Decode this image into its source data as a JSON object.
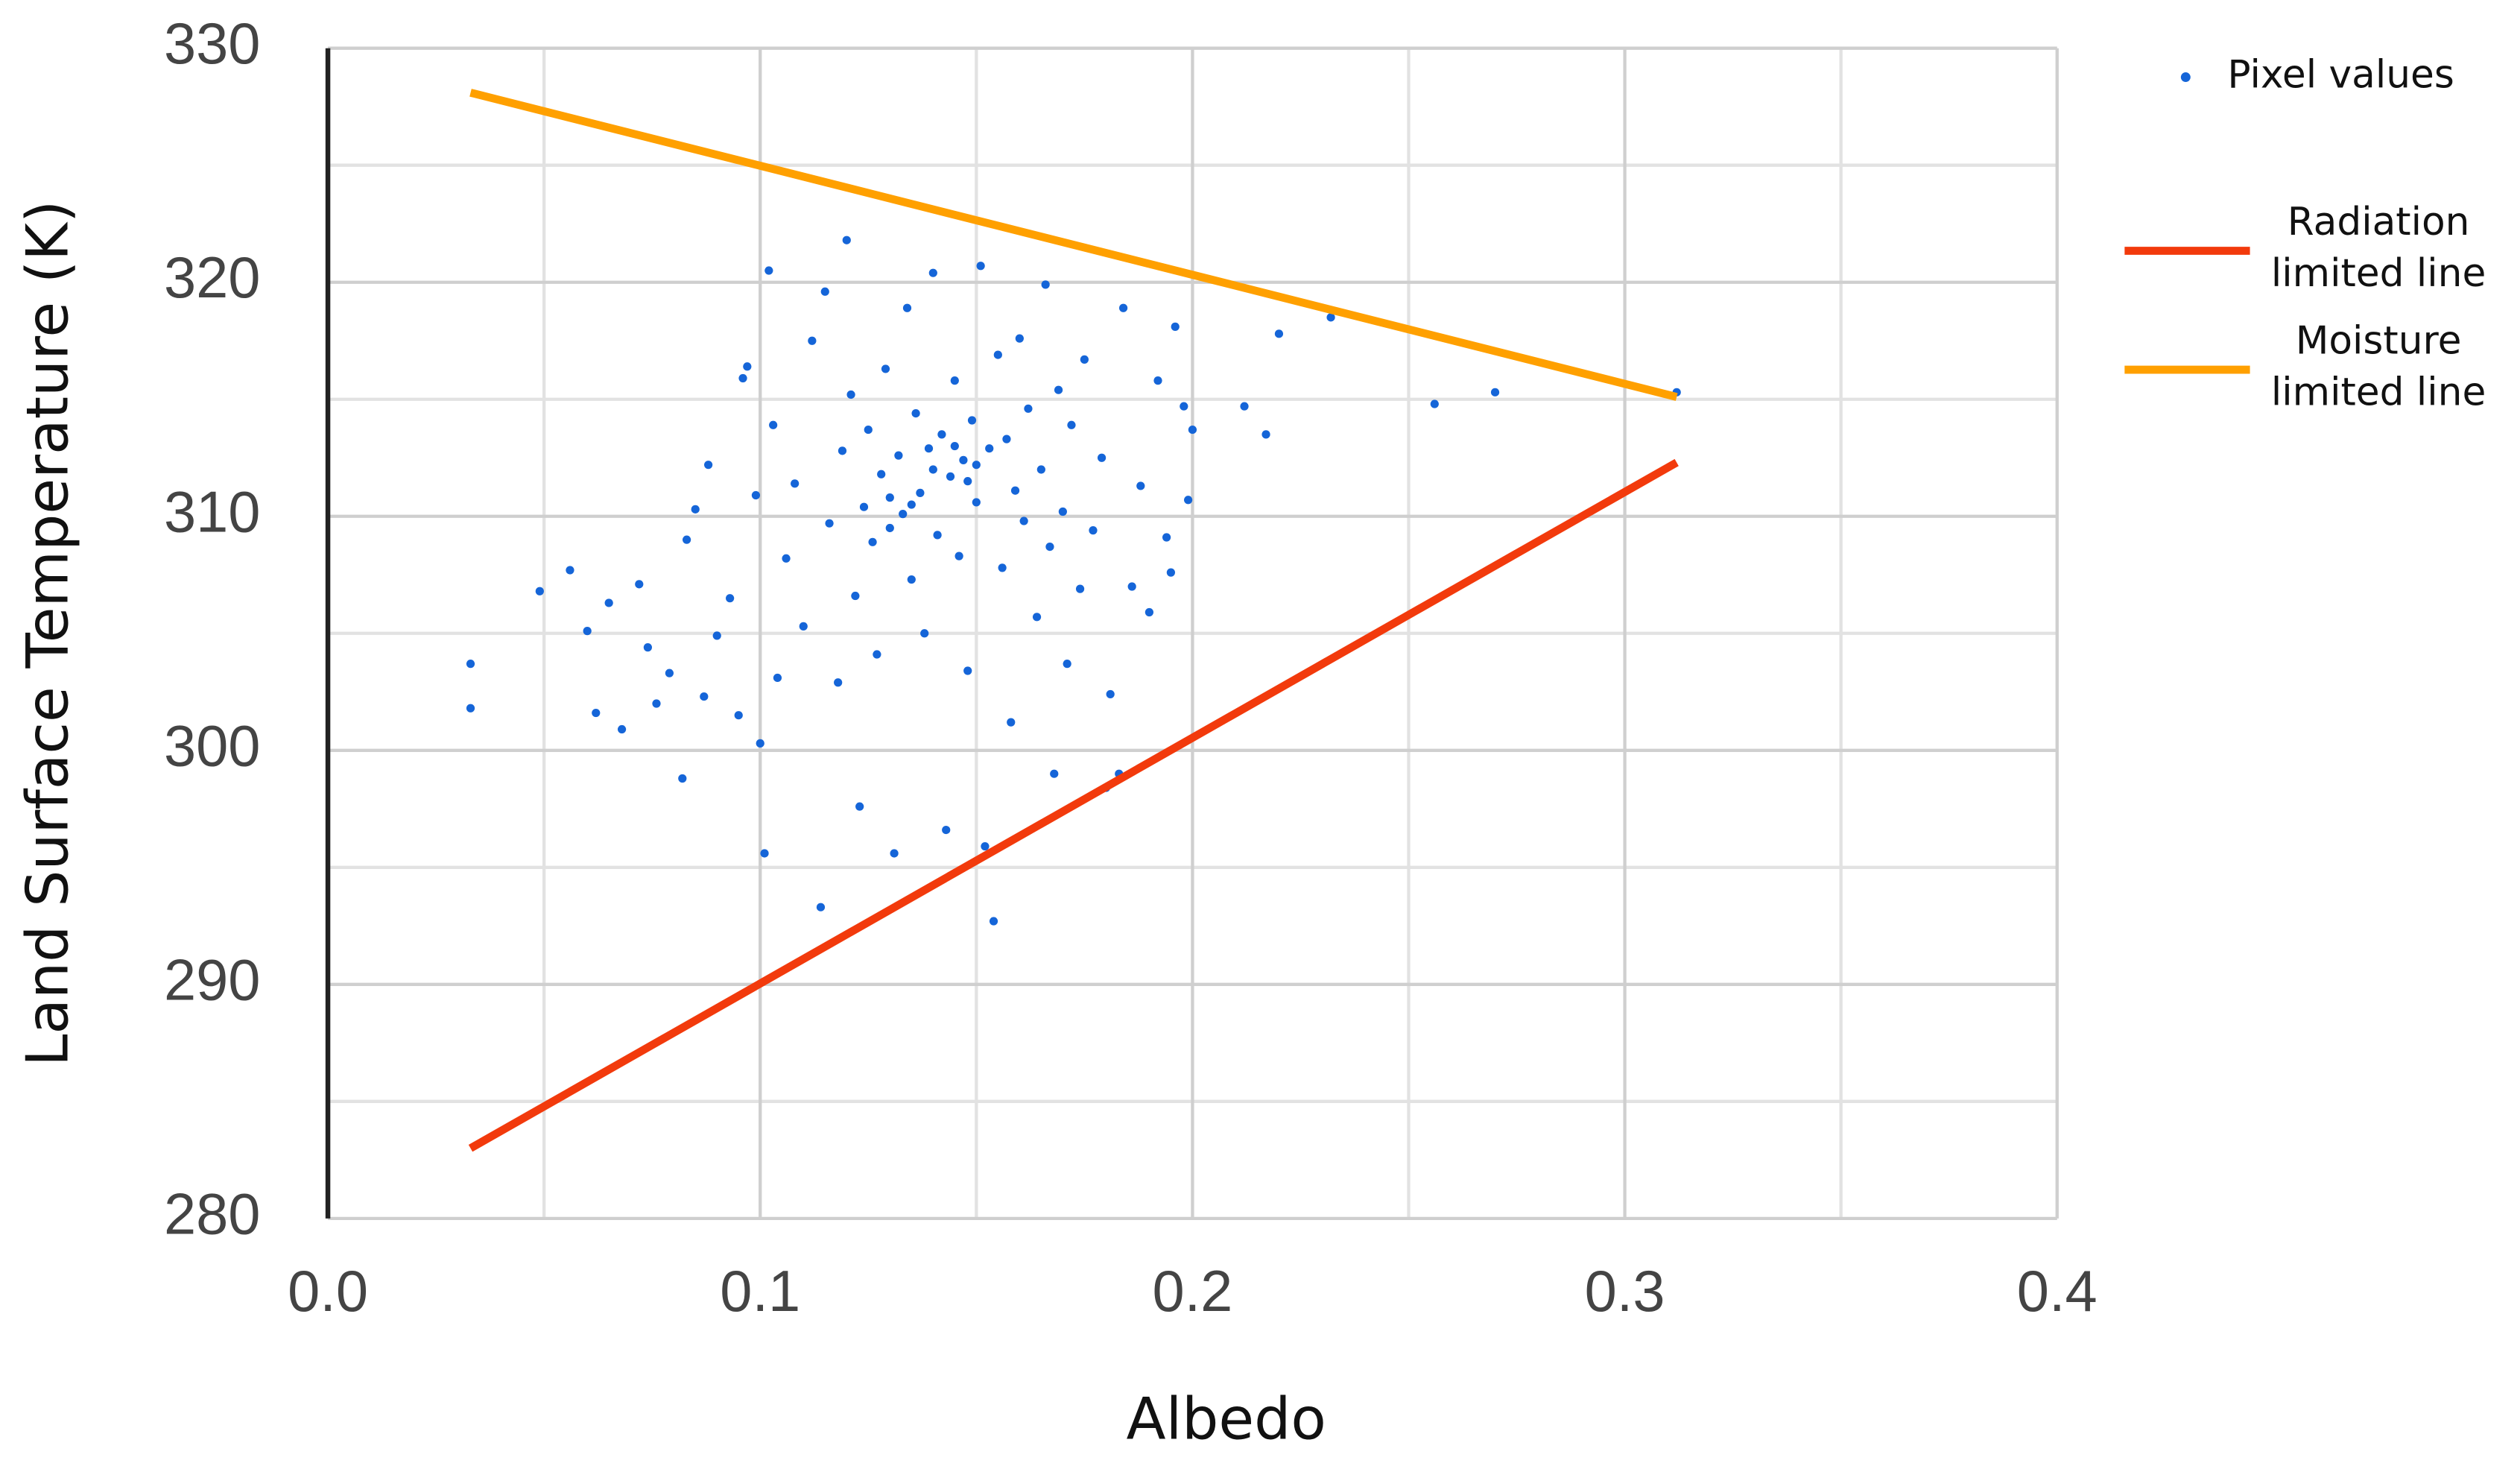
{
  "chart_data": {
    "type": "scatter",
    "x_label": "Albedo",
    "y_label": "Land Surface Temperature (K)",
    "xlim": [
      0,
      0.4
    ],
    "ylim": [
      280,
      330
    ],
    "xticks": [
      {
        "value": 0,
        "label": "0.0"
      },
      0.1,
      0.2,
      0.3,
      0.4
    ],
    "yticks": [
      280,
      290,
      300,
      310,
      320,
      330
    ],
    "x_minor_grid": [
      0.05,
      0.15,
      0.25,
      0.35
    ],
    "y_minor_grid": [
      285,
      295,
      305,
      315,
      325
    ],
    "grid": true,
    "legend": "right",
    "series": [
      {
        "name": "Pixel values",
        "color": "#1565d8",
        "mode": "markers",
        "x": [
          0.033,
          0.033,
          0.049,
          0.056,
          0.06,
          0.062,
          0.065,
          0.068,
          0.072,
          0.074,
          0.076,
          0.079,
          0.082,
          0.083,
          0.085,
          0.088,
          0.087,
          0.09,
          0.093,
          0.095,
          0.096,
          0.097,
          0.099,
          0.1,
          0.101,
          0.102,
          0.103,
          0.104,
          0.106,
          0.108,
          0.11,
          0.112,
          0.114,
          0.115,
          0.116,
          0.118,
          0.119,
          0.12,
          0.121,
          0.122,
          0.123,
          0.124,
          0.125,
          0.126,
          0.127,
          0.128,
          0.129,
          0.13,
          0.131,
          0.132,
          0.133,
          0.134,
          0.135,
          0.136,
          0.137,
          0.138,
          0.139,
          0.14,
          0.141,
          0.142,
          0.143,
          0.144,
          0.145,
          0.146,
          0.147,
          0.148,
          0.149,
          0.15,
          0.151,
          0.152,
          0.153,
          0.154,
          0.155,
          0.156,
          0.157,
          0.158,
          0.159,
          0.16,
          0.161,
          0.162,
          0.164,
          0.165,
          0.166,
          0.167,
          0.168,
          0.169,
          0.17,
          0.171,
          0.172,
          0.174,
          0.175,
          0.177,
          0.179,
          0.18,
          0.181,
          0.183,
          0.184,
          0.186,
          0.188,
          0.19,
          0.192,
          0.194,
          0.195,
          0.196,
          0.198,
          0.199,
          0.2,
          0.212,
          0.217,
          0.22,
          0.232,
          0.256,
          0.27,
          0.312,
          0.14,
          0.145,
          0.15,
          0.135,
          0.13,
          0.148
        ],
        "values": [
          303.7,
          301.8,
          306.8,
          307.7,
          305.1,
          301.6,
          306.3,
          300.9,
          307.1,
          304.4,
          302.0,
          303.3,
          298.8,
          309.0,
          310.3,
          312.2,
          302.3,
          304.9,
          306.5,
          301.5,
          315.9,
          316.4,
          310.9,
          300.3,
          295.6,
          320.5,
          313.9,
          303.1,
          308.2,
          311.4,
          305.3,
          317.5,
          293.3,
          319.6,
          309.7,
          302.9,
          312.8,
          321.8,
          315.2,
          306.6,
          297.6,
          310.4,
          313.7,
          308.9,
          304.1,
          311.8,
          316.3,
          309.5,
          295.6,
          312.6,
          310.1,
          318.9,
          307.3,
          314.4,
          311.0,
          305.0,
          312.9,
          320.4,
          309.2,
          313.5,
          296.6,
          311.7,
          315.8,
          308.3,
          312.4,
          303.4,
          314.1,
          310.6,
          320.7,
          295.9,
          312.9,
          292.7,
          316.9,
          307.8,
          313.3,
          301.2,
          311.1,
          317.6,
          309.8,
          314.6,
          305.7,
          312.0,
          319.9,
          308.7,
          299.0,
          315.4,
          310.2,
          303.7,
          313.9,
          306.9,
          316.7,
          309.4,
          312.5,
          298.4,
          302.4,
          299.0,
          318.9,
          307.0,
          311.3,
          305.9,
          315.8,
          309.1,
          307.6,
          318.1,
          314.7,
          310.7,
          313.7,
          314.7,
          313.5,
          317.8,
          318.5,
          314.8,
          315.3,
          315.3,
          312.0,
          313.0,
          312.2,
          310.5,
          310.8,
          311.5
        ]
      },
      {
        "name": "Radiation limited line",
        "color": "#f23a0c",
        "mode": "line",
        "x": [
          0.033,
          0.312
        ],
        "values": [
          283,
          312.3
        ]
      },
      {
        "name": "Moisture limited line",
        "color": "#ffa000",
        "mode": "line",
        "x": [
          0.033,
          0.312
        ],
        "values": [
          328.1,
          315.1
        ]
      }
    ]
  }
}
